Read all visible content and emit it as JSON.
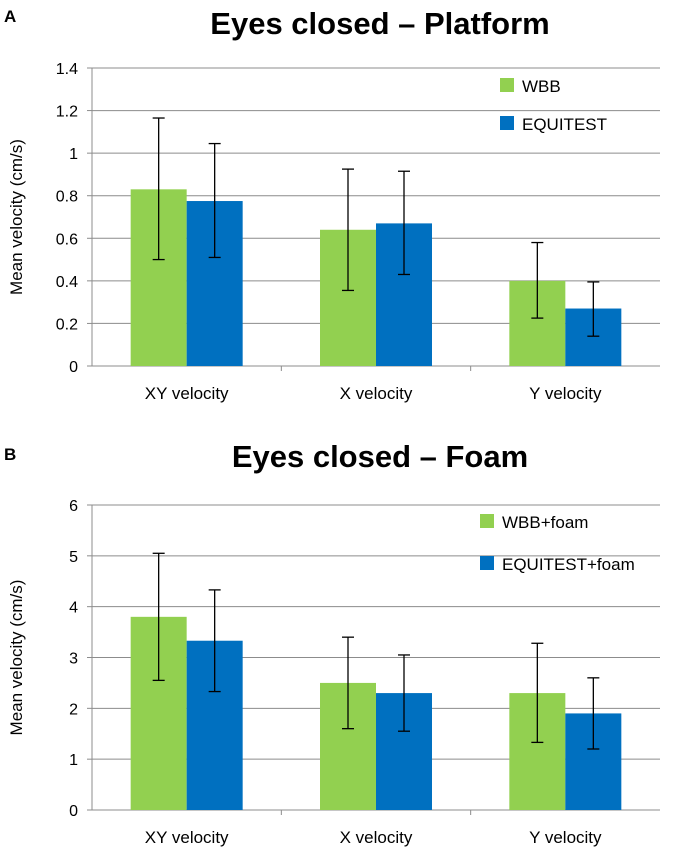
{
  "chart_data": [
    {
      "type": "bar",
      "panel": "A",
      "title": "Eyes closed – Platform",
      "xlabel": "",
      "ylabel": "Mean velocity (cm/s)",
      "ylim": [
        0,
        1.4
      ],
      "yticks": [
        0,
        0.2,
        0.4,
        0.6,
        0.8,
        1,
        1.2,
        1.4
      ],
      "ytick_labels": [
        "0",
        "0.2",
        "0.4",
        "0.6",
        "0.8",
        "1",
        "1.2",
        "1.4"
      ],
      "categories": [
        "XY velocity",
        "X velocity",
        "Y velocity"
      ],
      "legend_position": "top-right",
      "grid": true,
      "series": [
        {
          "name": "WBB",
          "color": "#92d050",
          "values": [
            0.83,
            0.64,
            0.4
          ],
          "err_low": [
            0.5,
            0.355,
            0.225
          ],
          "err_high": [
            1.165,
            0.925,
            0.58
          ]
        },
        {
          "name": "EQUITEST",
          "color": "#0070c0",
          "values": [
            0.775,
            0.67,
            0.27
          ],
          "err_low": [
            0.51,
            0.43,
            0.14
          ],
          "err_high": [
            1.045,
            0.915,
            0.395
          ]
        }
      ]
    },
    {
      "type": "bar",
      "panel": "B",
      "title": "Eyes closed – Foam",
      "xlabel": "",
      "ylabel": "Mean velocity (cm/s)",
      "ylim": [
        0,
        6
      ],
      "yticks": [
        0,
        1,
        2,
        3,
        4,
        5,
        6
      ],
      "ytick_labels": [
        "0",
        "1",
        "2",
        "3",
        "4",
        "5",
        "6"
      ],
      "categories": [
        "XY velocity",
        "X velocity",
        "Y velocity"
      ],
      "legend_position": "top-right",
      "grid": true,
      "series": [
        {
          "name": "WBB+foam",
          "color": "#92d050",
          "values": [
            3.8,
            2.5,
            2.3
          ],
          "err_low": [
            2.55,
            1.6,
            1.33
          ],
          "err_high": [
            5.05,
            3.4,
            3.28
          ]
        },
        {
          "name": "EQUITEST+foam",
          "color": "#0070c0",
          "values": [
            3.33,
            2.3,
            1.9
          ],
          "err_low": [
            2.33,
            1.55,
            1.2
          ],
          "err_high": [
            4.33,
            3.05,
            2.6
          ]
        }
      ]
    }
  ]
}
